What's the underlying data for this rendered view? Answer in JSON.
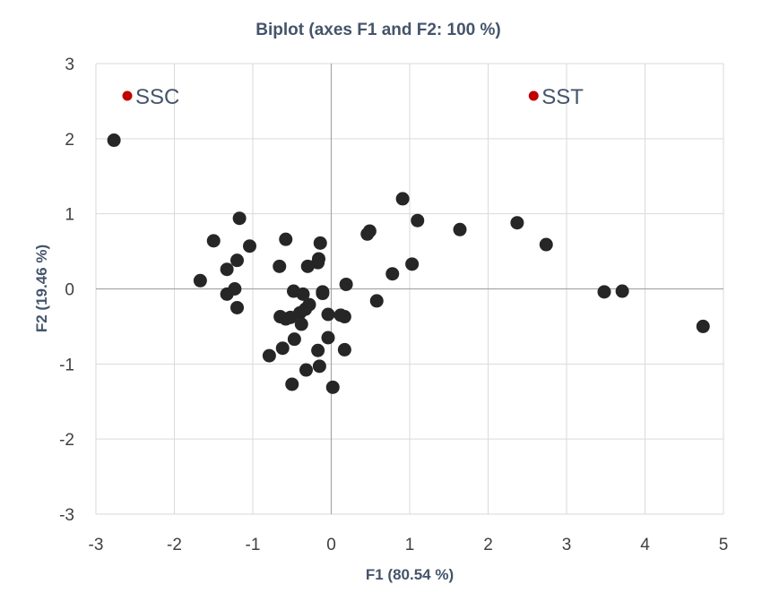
{
  "chart_data": {
    "type": "scatter",
    "title": "Biplot (axes F1 and F2: 100 %)",
    "xlabel": "F1 (80.54 %)",
    "ylabel": "F2 (19.46 %)",
    "xlim": [
      -3,
      5
    ],
    "ylim": [
      -3,
      3
    ],
    "xticks": [
      -3,
      -2,
      -1,
      0,
      1,
      2,
      3,
      4,
      5
    ],
    "yticks": [
      -3,
      -2,
      -1,
      0,
      1,
      2,
      3
    ],
    "grid": true,
    "colors": {
      "observations": "#262626",
      "variables": "#c00000",
      "text": "#44546a",
      "grid": "#dadada",
      "zero_axis": "#a6a6a6"
    },
    "observations": [
      [
        -2.77,
        1.98
      ],
      [
        -1.17,
        0.94
      ],
      [
        -1.5,
        0.64
      ],
      [
        -1.04,
        0.57
      ],
      [
        -1.2,
        0.38
      ],
      [
        -1.67,
        0.11
      ],
      [
        -1.33,
        0.26
      ],
      [
        -1.23,
        0.0
      ],
      [
        -1.33,
        -0.07
      ],
      [
        -1.2,
        -0.25
      ],
      [
        -0.58,
        0.66
      ],
      [
        -0.66,
        0.3
      ],
      [
        -0.14,
        0.61
      ],
      [
        -0.16,
        0.4
      ],
      [
        -0.17,
        0.35
      ],
      [
        -0.3,
        0.3
      ],
      [
        -0.48,
        -0.03
      ],
      [
        -0.36,
        -0.07
      ],
      [
        -0.28,
        -0.21
      ],
      [
        -0.33,
        -0.27
      ],
      [
        -0.4,
        -0.32
      ],
      [
        -0.65,
        -0.37
      ],
      [
        -0.58,
        -0.4
      ],
      [
        -0.52,
        -0.38
      ],
      [
        -0.38,
        -0.47
      ],
      [
        -0.11,
        -0.04
      ],
      [
        -0.11,
        -0.06
      ],
      [
        -0.04,
        -0.34
      ],
      [
        0.12,
        -0.35
      ],
      [
        0.17,
        -0.37
      ],
      [
        0.19,
        0.06
      ],
      [
        -0.47,
        -0.67
      ],
      [
        -0.62,
        -0.79
      ],
      [
        -0.79,
        -0.89
      ],
      [
        -0.04,
        -0.65
      ],
      [
        -0.17,
        -0.82
      ],
      [
        0.17,
        -0.81
      ],
      [
        -0.32,
        -1.08
      ],
      [
        -0.15,
        -1.03
      ],
      [
        -0.5,
        -1.27
      ],
      [
        0.02,
        -1.31
      ],
      [
        0.46,
        0.73
      ],
      [
        0.49,
        0.77
      ],
      [
        0.91,
        1.2
      ],
      [
        1.1,
        0.91
      ],
      [
        0.58,
        -0.16
      ],
      [
        0.78,
        0.2
      ],
      [
        1.03,
        0.33
      ],
      [
        1.64,
        0.79
      ],
      [
        2.37,
        0.88
      ],
      [
        2.74,
        0.59
      ],
      [
        3.48,
        -0.04
      ],
      [
        3.71,
        -0.03
      ],
      [
        4.74,
        -0.5
      ]
    ],
    "variables": [
      {
        "name": "SSC",
        "x": -2.6,
        "y": 2.57
      },
      {
        "name": "SST",
        "x": 2.58,
        "y": 2.57
      }
    ]
  }
}
